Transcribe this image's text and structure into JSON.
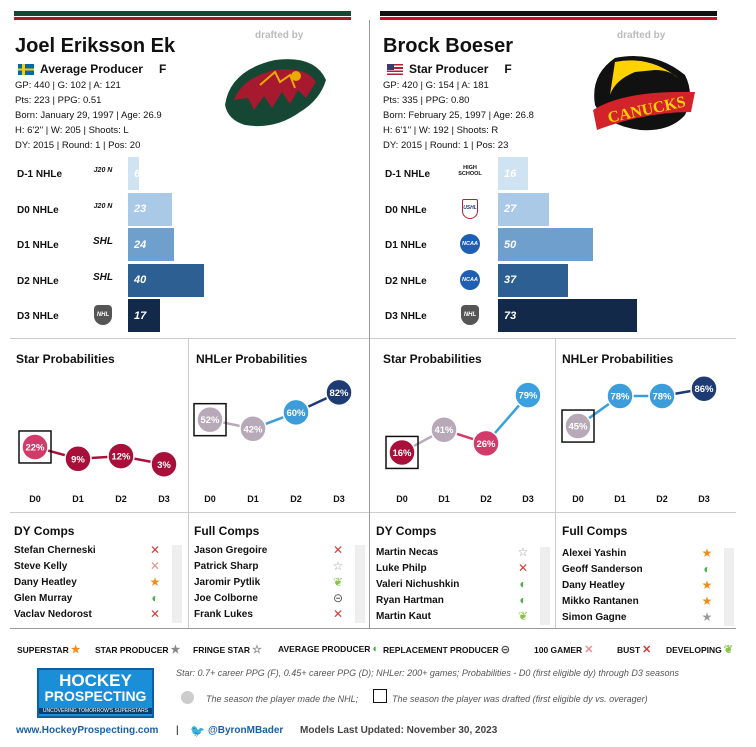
{
  "players": [
    {
      "name": "Joel Eriksson Ek",
      "drafted_by": "drafted by",
      "tier": "Average Producer",
      "position": "F",
      "stats": [
        "GP: 440 | G: 102 | A: 121",
        "Pts: 223 | PPG: 0.51",
        "Born: January 29, 1997 | Age: 26.9",
        "H: 6'2'' | W: 205 | Shoots: L",
        "DY: 2015 | Round: 1 | Pos: 20"
      ],
      "bars": [
        {
          "label": "D-1 NHLe",
          "league": "J20 N",
          "value": 6,
          "color": "#cfe3f3"
        },
        {
          "label": "D0 NHLe",
          "league": "J20 N",
          "value": 23,
          "color": "#a9c9e6"
        },
        {
          "label": "D1 NHLe",
          "league": "SHL",
          "value": 24,
          "color": "#6f9fcd"
        },
        {
          "label": "D2 NHLe",
          "league": "SHL",
          "value": 40,
          "color": "#2e5f93"
        },
        {
          "label": "D3 NHLe",
          "league": "NHL",
          "value": 17,
          "color": "#12294a"
        }
      ],
      "star_prob": {
        "title": "Star Probabilities",
        "values": [
          "22%",
          "9%",
          "12%",
          "3%"
        ],
        "nums": [
          22,
          9,
          12,
          3
        ]
      },
      "nhler_prob": {
        "title": "NHLer Probabilities",
        "values": [
          "52%",
          "42%",
          "60%",
          "82%"
        ],
        "nums": [
          52,
          42,
          60,
          82
        ]
      },
      "dy_comps_title": "DY Comps",
      "dy_comps": [
        {
          "name": "Stefan Cherneski",
          "icon": "✕",
          "color": "#d23b3b"
        },
        {
          "name": "Steve Kelly",
          "icon": "✕",
          "color": "#e88f8f"
        },
        {
          "name": "Dany Heatley",
          "icon": "★",
          "color": "#f08c1e"
        },
        {
          "name": "Glen Murray",
          "icon": "◐",
          "color": "#4caf50"
        },
        {
          "name": "Vaclav Nedorost",
          "icon": "✕",
          "color": "#d23b3b"
        }
      ],
      "full_comps_title": "Full Comps",
      "full_comps": [
        {
          "name": "Jason Gregoire",
          "icon": "✕",
          "color": "#d23b3b"
        },
        {
          "name": "Patrick Sharp",
          "icon": "☆",
          "color": "#999"
        },
        {
          "name": "Jaromir Pytlik",
          "icon": "❦",
          "color": "#8bc34a"
        },
        {
          "name": "Joe Colborne",
          "icon": "⊝",
          "color": "#555"
        },
        {
          "name": "Frank Lukes",
          "icon": "✕",
          "color": "#d23b3b"
        }
      ]
    },
    {
      "name": "Brock Boeser",
      "drafted_by": "drafted by",
      "tier": "Star Producer",
      "position": "F",
      "stats": [
        "GP: 420 | G: 154 | A: 181",
        "Pts: 335 | PPG: 0.80",
        "Born: February 25, 1997 | Age: 26.8",
        "H: 6'1'' | W: 192 | Shoots: R",
        "DY: 2015 | Round: 1 | Pos: 23"
      ],
      "bars": [
        {
          "label": "D-1 NHLe",
          "league": "HIGH SCHOOL",
          "value": 16,
          "color": "#cfe3f3"
        },
        {
          "label": "D0 NHLe",
          "league": "USHL",
          "value": 27,
          "color": "#a9c9e6"
        },
        {
          "label": "D1 NHLe",
          "league": "NCAA",
          "value": 50,
          "color": "#6f9fcd"
        },
        {
          "label": "D2 NHLe",
          "league": "NCAA",
          "value": 37,
          "color": "#2e5f93"
        },
        {
          "label": "D3 NHLe",
          "league": "NHL",
          "value": 73,
          "color": "#12294a"
        }
      ],
      "star_prob": {
        "title": "Star Probabilities",
        "values": [
          "16%",
          "41%",
          "26%",
          "79%"
        ],
        "nums": [
          16,
          41,
          26,
          79
        ]
      },
      "nhler_prob": {
        "title": "NHLer Probabilities",
        "values": [
          "45%",
          "78%",
          "78%",
          "86%"
        ],
        "nums": [
          45,
          78,
          78,
          86
        ]
      },
      "dy_comps_title": "DY Comps",
      "dy_comps": [
        {
          "name": "Martin Necas",
          "icon": "☆",
          "color": "#999"
        },
        {
          "name": "Luke Philp",
          "icon": "✕",
          "color": "#d23b3b"
        },
        {
          "name": "Valeri Nichushkin",
          "icon": "◐",
          "color": "#4caf50"
        },
        {
          "name": "Ryan Hartman",
          "icon": "◐",
          "color": "#4caf50"
        },
        {
          "name": "Martin Kaut",
          "icon": "❦",
          "color": "#8bc34a"
        }
      ],
      "full_comps_title": "Full Comps",
      "full_comps": [
        {
          "name": "Alexei Yashin",
          "icon": "★",
          "color": "#f08c1e"
        },
        {
          "name": "Geoff Sanderson",
          "icon": "◐",
          "color": "#4caf50"
        },
        {
          "name": "Dany Heatley",
          "icon": "★",
          "color": "#f08c1e"
        },
        {
          "name": "Mikko Rantanen",
          "icon": "★",
          "color": "#f08c1e"
        },
        {
          "name": "Simon Gagne",
          "icon": "★",
          "color": "#999"
        }
      ]
    }
  ],
  "x_labels": [
    "D0",
    "D1",
    "D2",
    "D3"
  ],
  "legend": [
    {
      "label": "SUPERSTAR",
      "icon": "★",
      "color": "#f08c1e"
    },
    {
      "label": "STAR PRODUCER",
      "icon": "★",
      "color": "#888"
    },
    {
      "label": "FRINGE STAR",
      "icon": "☆",
      "color": "#888"
    },
    {
      "label": "AVERAGE PRODUCER",
      "icon": "◐",
      "color": "#4caf50"
    },
    {
      "label": "REPLACEMENT PRODUCER",
      "icon": "⊝",
      "color": "#555"
    },
    {
      "label": "100 GAMER",
      "icon": "✕",
      "color": "#e88f8f"
    },
    {
      "label": "BUST",
      "icon": "✕",
      "color": "#d23b3b"
    },
    {
      "label": "DEVELOPING",
      "icon": "❦",
      "color": "#8bc34a"
    }
  ],
  "brand": {
    "line1": "HOCKEY",
    "line2": "PROSPECTING",
    "tagline": "UNCOVERING TOMORROW'S SUPERSTARS"
  },
  "footnote": "Star: 0.7+ career PPG (F), 0.45+ career PPG (D); NHLer: 200+ games; Probabilities - D0 (first eligible dy) through D3 seasons",
  "note_nhl": "The season the player made the NHL;",
  "note_drafted": "The season the player was drafted (first eligible dy vs. overager)",
  "website": "www.HockeyProspecting.com",
  "separator": "|",
  "twitter": "@ByronMBader",
  "updated": "Models Last Updated: November 30, 2023",
  "team_logos": {
    "left": "minnesota-wild",
    "right": "vancouver-canucks"
  }
}
